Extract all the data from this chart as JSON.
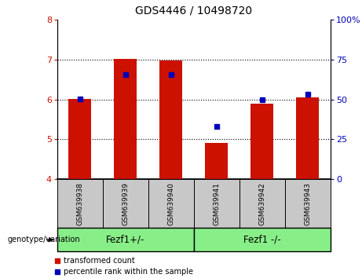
{
  "title": "GDS4446 / 10498720",
  "samples": [
    "GSM639938",
    "GSM639939",
    "GSM639940",
    "GSM639941",
    "GSM639942",
    "GSM639943"
  ],
  "bar_values": [
    6.02,
    7.02,
    6.98,
    4.91,
    5.9,
    6.05
  ],
  "percentile_values": [
    6.02,
    6.62,
    6.62,
    5.32,
    6.0,
    6.12
  ],
  "y_min": 4,
  "y_max": 8,
  "y_ticks_left": [
    4,
    5,
    6,
    7,
    8
  ],
  "y_ticks_right_vals": [
    0,
    25,
    50,
    75,
    100
  ],
  "y_ticks_right_labels": [
    "0",
    "25",
    "50",
    "75",
    "100%"
  ],
  "bar_color": "#cc1100",
  "dot_color": "#0000bb",
  "group1_label": "Fezf1+/-",
  "group2_label": "Fezf1 -/-",
  "group1_indices": [
    0,
    1,
    2
  ],
  "group2_indices": [
    3,
    4,
    5
  ],
  "group_bg_color": "#88ee88",
  "sample_bg_color": "#c8c8c8",
  "legend_red_label": "transformed count",
  "legend_blue_label": "percentile rank within the sample",
  "genotype_label": "genotype/variation",
  "bar_width": 0.5,
  "grid_lines": [
    5,
    6,
    7
  ],
  "title_fontsize": 10,
  "axis_fontsize": 8,
  "label_fontsize": 7.5
}
